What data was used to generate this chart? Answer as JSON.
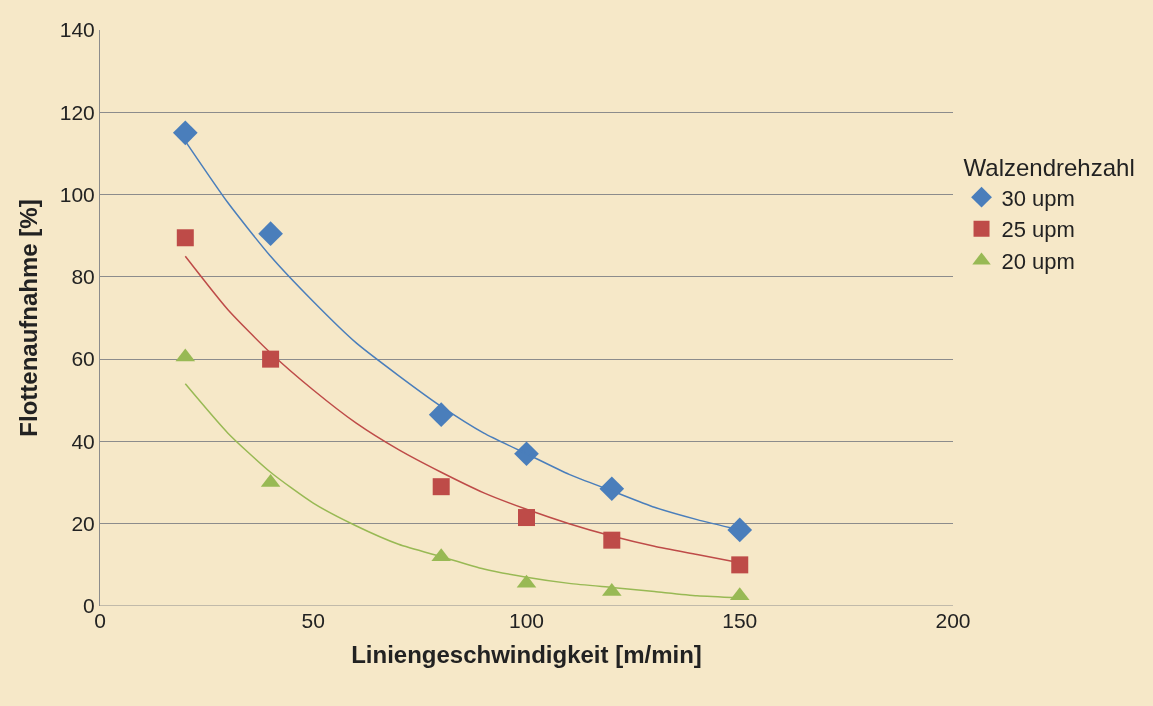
{
  "chart_data": {
    "type": "scatter",
    "xlabel": "Liniengeschwindigkeit [m/min]",
    "ylabel": "Flottenaufnahme [%]",
    "legend_title": "Walzendrehzahl",
    "legend": "right",
    "grid": "y",
    "x": [
      20,
      40,
      80,
      100,
      120,
      150
    ],
    "xlim": [
      0,
      200
    ],
    "xticks": [
      0,
      50,
      100,
      150,
      200
    ],
    "ylim": [
      0,
      140
    ],
    "yticks": [
      0,
      20,
      40,
      60,
      80,
      100,
      120,
      140
    ],
    "series": [
      {
        "name": "30 upm",
        "color": "#4a7ebb",
        "marker": "diamond",
        "values": [
          115,
          90.5,
          46.5,
          37,
          28.5,
          18.5
        ]
      },
      {
        "name": "25 upm",
        "color": "#be4b48",
        "marker": "square",
        "values": [
          89.5,
          60,
          29,
          21.5,
          16,
          10
        ]
      },
      {
        "name": "20 upm",
        "color": "#98b954",
        "marker": "triangle",
        "values": [
          60.5,
          30,
          12,
          5.5,
          3.5,
          2.5
        ]
      },
      {
        "type": "line",
        "color": "#4a7ebb",
        "marker": "none",
        "x": [
          20,
          30,
          40,
          50,
          60,
          70,
          80,
          90,
          100,
          110,
          120,
          130,
          140,
          150
        ],
        "values": [
          113,
          98,
          85,
          74,
          64,
          56,
          48.5,
          42,
          37,
          32,
          28,
          24,
          21,
          18.5
        ]
      },
      {
        "type": "line",
        "color": "#be4b48",
        "marker": "none",
        "x": [
          20,
          30,
          40,
          50,
          60,
          70,
          80,
          90,
          100,
          110,
          120,
          130,
          140,
          150
        ],
        "values": [
          85,
          72,
          61.5,
          52.5,
          44.5,
          38,
          32.5,
          27.5,
          23.5,
          20,
          17,
          14.5,
          12.5,
          10.5
        ]
      },
      {
        "type": "line",
        "color": "#98b954",
        "marker": "none",
        "x": [
          20,
          30,
          40,
          50,
          60,
          70,
          80,
          90,
          100,
          110,
          120,
          130,
          140,
          150
        ],
        "values": [
          54,
          42,
          32.5,
          25,
          19.5,
          15,
          12,
          9,
          7,
          5.5,
          4.5,
          3.5,
          2.5,
          2
        ]
      }
    ]
  }
}
